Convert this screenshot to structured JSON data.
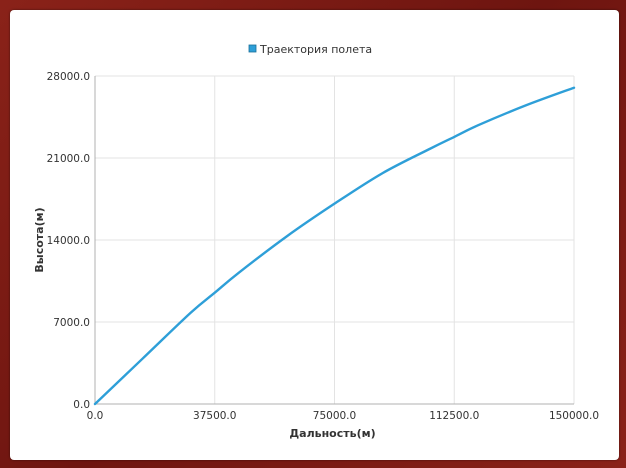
{
  "chart_data": {
    "type": "line",
    "legend": {
      "position": "top-center"
    },
    "xlabel": "Дальность(м)",
    "ylabel": "Высота(м)",
    "xlim": [
      0,
      150000
    ],
    "ylim": [
      0,
      28000
    ],
    "grid": true,
    "x_ticks": [
      "0.0",
      "37500.0",
      "75000.0",
      "112500.0",
      "150000.0"
    ],
    "y_ticks": [
      "0.0",
      "7000.0",
      "14000.0",
      "21000.0",
      "28000.0"
    ],
    "x_tick_values": [
      0,
      37500,
      75000,
      112500,
      150000
    ],
    "y_tick_values": [
      0,
      7000,
      14000,
      21000,
      28000
    ],
    "series": [
      {
        "name": "Траектория полета",
        "color": "#2e9fd8",
        "x": [
          0,
          15000,
          30000,
          37500,
          45000,
          60000,
          75000,
          90000,
          105000,
          112500,
          120000,
          135000,
          150000
        ],
        "y": [
          0,
          3900,
          7800,
          9500,
          11200,
          14300,
          17100,
          19700,
          21800,
          22800,
          23800,
          25500,
          27000
        ]
      }
    ]
  }
}
